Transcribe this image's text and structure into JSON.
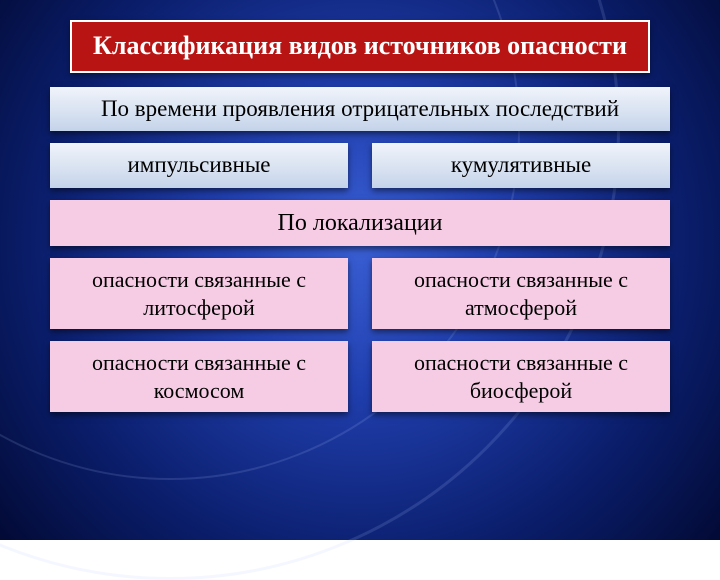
{
  "title": "Классификация видов  источников опасности",
  "section1": {
    "header": "По времени проявления отрицательных последствий",
    "items": [
      "импульсивные",
      "кумулятивные"
    ]
  },
  "section2": {
    "header": "По локализации",
    "row1": [
      "опасности связанные с литосферой",
      "опасности связанные с атмосферой"
    ],
    "row2": [
      "опасности связанные с космосом",
      "опасности связанные с биосферой"
    ]
  },
  "colors": {
    "title_bg": "#b81414",
    "title_border": "#ffffff",
    "blue_box_top": "#f0f4fb",
    "blue_box_bottom": "#c5d3ea",
    "pink_box": "#f5cce4",
    "bg_center": "#3a5fd4",
    "bg_edge": "#020a35"
  },
  "fonts": {
    "title_size": 26,
    "header_size": 23,
    "item_size": 22
  }
}
